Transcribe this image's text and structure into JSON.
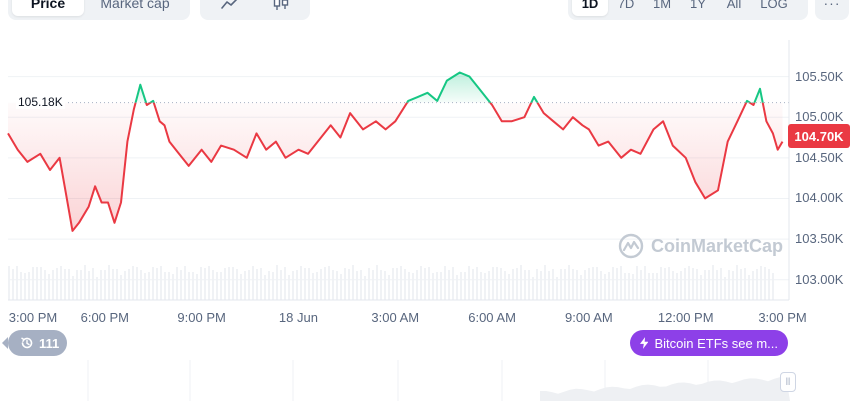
{
  "toolbar": {
    "type_tabs": [
      {
        "label": "Price",
        "active": true
      },
      {
        "label": "Market cap",
        "active": false
      }
    ],
    "style_icons": [
      "line-chart-icon",
      "candlestick-icon"
    ],
    "range_tabs": [
      {
        "label": "1D",
        "active": true
      },
      {
        "label": "7D",
        "active": false
      },
      {
        "label": "1M",
        "active": false
      },
      {
        "label": "1Y",
        "active": false
      },
      {
        "label": "All",
        "active": false
      },
      {
        "label": "LOG",
        "active": false
      }
    ],
    "more_label": "···"
  },
  "chart": {
    "reference_price_label": "105.18K",
    "current_price_label": "104.70K",
    "watermark_text": "CoinMarketCap",
    "colors": {
      "up": "#16c784",
      "down": "#ea3943",
      "grid": "#eff2f5",
      "text": "#58667e"
    }
  },
  "markers": {
    "history_count": "111",
    "news_text": "Bitcoin ETFs see m..."
  },
  "chart_data": {
    "type": "line",
    "y_tick_labels": [
      "105.50K",
      "105.00K",
      "104.50K",
      "104.00K",
      "103.50K",
      "103.00K"
    ],
    "y_ticks": [
      105500,
      105000,
      104500,
      104000,
      103500,
      103000
    ],
    "ylim": [
      102750,
      105950
    ],
    "reference_value": 105180,
    "x_tick_labels": [
      "3:00 PM",
      "6:00 PM",
      "9:00 PM",
      "18 Jun",
      "3:00 AM",
      "6:00 AM",
      "9:00 AM",
      "12:00 PM",
      "3:00 PM"
    ],
    "x_ticks": [
      0,
      3,
      6,
      9,
      12,
      15,
      18,
      21,
      24
    ],
    "xlim": [
      0,
      24.2
    ],
    "series": [
      {
        "x": [
          0,
          0.3,
          0.6,
          1.0,
          1.3,
          1.6,
          1.8,
          2.0,
          2.2,
          2.5,
          2.7,
          2.9,
          3.1,
          3.3,
          3.5,
          3.7,
          3.9,
          4.1,
          4.3,
          4.5,
          4.7,
          4.85,
          5.0,
          5.3,
          5.6,
          6.0,
          6.3,
          6.6,
          7.0,
          7.4,
          7.7,
          8.0,
          8.3,
          8.6,
          9.0,
          9.3,
          9.7,
          10.0,
          10.3,
          10.6,
          11.0,
          11.4,
          11.7,
          12.0,
          12.4,
          12.7,
          13.0,
          13.3,
          13.6,
          14.0,
          14.3,
          14.6,
          15.0,
          15.3,
          15.6,
          16.0,
          16.3,
          16.6,
          16.9,
          17.2,
          17.5,
          17.8,
          18.0,
          18.3,
          18.6,
          19.0,
          19.3,
          19.6,
          20.0,
          20.3,
          20.6,
          21.0,
          21.3,
          21.6,
          22.0,
          22.3,
          22.6,
          22.9,
          23.1,
          23.3,
          23.5,
          23.7,
          23.85,
          24.0
        ],
        "y": [
          104800,
          104600,
          104450,
          104550,
          104350,
          104500,
          104050,
          103600,
          103700,
          103900,
          104150,
          103950,
          103950,
          103700,
          103950,
          104700,
          105100,
          105400,
          105150,
          105200,
          104950,
          104900,
          104700,
          104550,
          104400,
          104600,
          104450,
          104650,
          104600,
          104500,
          104800,
          104600,
          104700,
          104500,
          104600,
          104550,
          104750,
          104900,
          104750,
          105050,
          104850,
          104950,
          104850,
          104950,
          105200,
          105250,
          105300,
          105200,
          105450,
          105550,
          105500,
          105350,
          105150,
          104950,
          104950,
          105000,
          105250,
          105050,
          104950,
          104850,
          105000,
          104900,
          104850,
          104650,
          104700,
          104500,
          104600,
          104550,
          104850,
          104950,
          104650,
          104500,
          104200,
          104000,
          104100,
          104700,
          104950,
          105200,
          105150,
          105350,
          104950,
          104800,
          104600,
          104700
        ]
      }
    ],
    "volume_bars": "present",
    "navigator": "present"
  }
}
